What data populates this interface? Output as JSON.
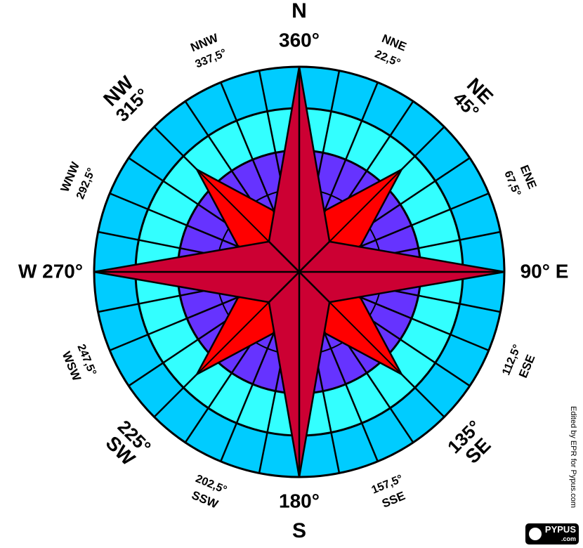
{
  "colors": {
    "outer_ring": "#00ccff",
    "middle_ring": "#33ffff",
    "inner_ring": "#6633ff",
    "main_star": "#cc0033",
    "secondary_star": "#ff0000",
    "lines": "#000000"
  },
  "labels": {
    "N": {
      "name": "N",
      "deg": "360°"
    },
    "NNE": {
      "name": "NNE",
      "deg": "22,5°"
    },
    "NE": {
      "name": "NE",
      "deg": "45°"
    },
    "ENE": {
      "name": "ENE",
      "deg": "67,5°"
    },
    "E": {
      "text": "90° E"
    },
    "ESE": {
      "name": "ESE",
      "deg": "112,5°"
    },
    "SE": {
      "name": "SE",
      "deg": "135°"
    },
    "SSE": {
      "name": "SSE",
      "deg": "157,5°"
    },
    "S": {
      "name": "S",
      "deg": "180°"
    },
    "SSW": {
      "name": "SSW",
      "deg": "202,5°"
    },
    "SW": {
      "name": "SW",
      "deg": "225°"
    },
    "WSW": {
      "name": "WSW",
      "deg": "247,5°"
    },
    "W": {
      "text": "W 270°"
    },
    "WNW": {
      "name": "WNW",
      "deg": "292,5°"
    },
    "NW": {
      "name": "NW",
      "deg": "315°"
    },
    "NNW": {
      "name": "NNW",
      "deg": "337,5°"
    }
  },
  "credit": "Edited by EPR for Pypus.com",
  "logo": {
    "name": "PYPUS",
    "suffix": ".com"
  }
}
